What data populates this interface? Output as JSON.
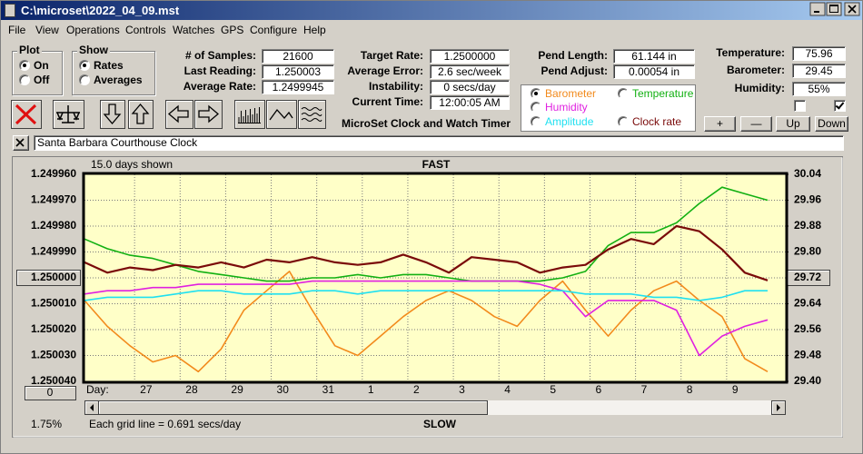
{
  "window": {
    "title": "C:\\microset\\2022_04_09.mst"
  },
  "menu": [
    "File",
    "View",
    "Operations",
    "Controls",
    "Watches",
    "GPS",
    "Configure",
    "Help"
  ],
  "plot": {
    "title": "Plot",
    "options": [
      "On",
      "Off"
    ],
    "selected": 0
  },
  "show": {
    "title": "Show",
    "options": [
      "Rates",
      "Averages"
    ],
    "selected": 0
  },
  "fields": [
    {
      "label": "# of Samples:",
      "value": "21600"
    },
    {
      "label": "Last Reading:",
      "value": "1.250003"
    },
    {
      "label": "Average Rate:",
      "value": "1.2499945"
    },
    {
      "label": "Target Rate:",
      "value": "1.2500000"
    },
    {
      "label": "Average Error:",
      "value": "2.6 sec/week"
    },
    {
      "label": "Instability:",
      "value": "0 secs/day"
    },
    {
      "label": "Current Time:",
      "value": "12:00:05 AM"
    },
    {
      "label": "Pend Length:",
      "value": "61.144 in"
    },
    {
      "label": "Pend Adjust:",
      "value": "0.00054 in"
    },
    {
      "label": "Temperature:",
      "value": "75.96"
    },
    {
      "label": "Barometer:",
      "value": "29.45"
    },
    {
      "label": "Humidity:",
      "value": "55%"
    }
  ],
  "app_title": "MicroSet Clock and Watch Timer",
  "checkboxes": [
    false,
    true
  ],
  "buttons": [
    "+",
    "—",
    "Up",
    "Down"
  ],
  "clock_name": "Santa Barbara Courthouse Clock",
  "chart_data": {
    "type": "line",
    "span_label": "15.0 days shown",
    "top_label": "FAST",
    "bottom_label": "SLOW",
    "x_label": "Day:",
    "grid_note": "Each grid line = 0.691 secs/day",
    "percent": "1.75%",
    "scroll_button": "0",
    "grid": true,
    "legend_selected": 0,
    "x": [
      0,
      0.5,
      1,
      1.5,
      2,
      2.5,
      3,
      3.5,
      4,
      4.5,
      5,
      5.5,
      6,
      6.5,
      7,
      7.5,
      8,
      8.5,
      9,
      9.5,
      10,
      10.5,
      11,
      11.5,
      12,
      12.5,
      13,
      13.5,
      14,
      14.5,
      15
    ],
    "xlim": [
      0,
      15
    ],
    "xticks": [
      {
        "value": 1.1,
        "label": "27"
      },
      {
        "value": 2.1,
        "label": "28"
      },
      {
        "value": 3.1,
        "label": "29"
      },
      {
        "value": 4.1,
        "label": "30"
      },
      {
        "value": 5.1,
        "label": "31"
      },
      {
        "value": 6.1,
        "label": "1"
      },
      {
        "value": 7.1,
        "label": "2"
      },
      {
        "value": 8.1,
        "label": "3"
      },
      {
        "value": 9.1,
        "label": "4"
      },
      {
        "value": 10.1,
        "label": "5"
      },
      {
        "value": 11.1,
        "label": "6"
      },
      {
        "value": 12.1,
        "label": "7"
      },
      {
        "value": 13.1,
        "label": "8"
      },
      {
        "value": 14.1,
        "label": "9"
      }
    ],
    "ylim": [
      1.25004,
      1.24996
    ],
    "yticks": [
      {
        "value": 1.24996,
        "label": "1.249960"
      },
      {
        "value": 1.24997,
        "label": "1.249970"
      },
      {
        "value": 1.24998,
        "label": "1.249980"
      },
      {
        "value": 1.24999,
        "label": "1.249990"
      },
      {
        "value": 1.25,
        "label": "1.250000"
      },
      {
        "value": 1.25001,
        "label": "1.250010"
      },
      {
        "value": 1.25002,
        "label": "1.250020"
      },
      {
        "value": 1.25003,
        "label": "1.250030"
      },
      {
        "value": 1.25004,
        "label": "1.250040"
      }
    ],
    "y2lim": [
      29.4,
      30.04
    ],
    "y2ticks": [
      30.04,
      29.96,
      29.88,
      {
        "value": 29.8,
        "label": "29.80"
      },
      29.72,
      29.64,
      29.56,
      29.48,
      {
        "value": 29.4,
        "label": "29.40"
      }
    ],
    "series": [
      {
        "name": "Barometer",
        "color": "#f28a1c",
        "axis": "y2",
        "values": [
          29.65,
          29.57,
          29.51,
          29.46,
          29.48,
          29.43,
          29.5,
          29.62,
          29.68,
          29.74,
          29.62,
          29.51,
          29.48,
          29.54,
          29.6,
          29.65,
          29.68,
          29.65,
          29.6,
          29.57,
          29.65,
          29.71,
          29.62,
          29.54,
          29.62,
          29.68,
          29.71,
          29.65,
          29.6,
          29.47,
          29.43
        ]
      },
      {
        "name": "Temperature",
        "color": "#12b012",
        "axis": "y2",
        "values": [
          29.84,
          29.81,
          29.79,
          29.78,
          29.76,
          29.74,
          29.73,
          29.72,
          29.71,
          29.71,
          29.72,
          29.72,
          29.73,
          29.72,
          29.73,
          29.73,
          29.72,
          29.71,
          29.71,
          29.71,
          29.71,
          29.72,
          29.74,
          29.82,
          29.86,
          29.86,
          29.89,
          29.95,
          30.0,
          29.98,
          29.96
        ]
      },
      {
        "name": "Humidity",
        "color": "#e020e0",
        "axis": "y2",
        "values": [
          29.67,
          29.68,
          29.68,
          29.69,
          29.69,
          29.7,
          29.7,
          29.7,
          29.7,
          29.7,
          29.71,
          29.71,
          29.71,
          29.71,
          29.71,
          29.71,
          29.71,
          29.71,
          29.71,
          29.71,
          29.7,
          29.68,
          29.6,
          29.65,
          29.65,
          29.65,
          29.62,
          29.48,
          29.54,
          29.57,
          29.59
        ]
      },
      {
        "name": "Amplitude",
        "color": "#20e0f0",
        "axis": "y2",
        "values": [
          29.65,
          29.66,
          29.66,
          29.66,
          29.67,
          29.68,
          29.68,
          29.67,
          29.67,
          29.67,
          29.68,
          29.68,
          29.67,
          29.68,
          29.68,
          29.68,
          29.68,
          29.68,
          29.68,
          29.68,
          29.68,
          29.68,
          29.67,
          29.67,
          29.67,
          29.66,
          29.66,
          29.65,
          29.66,
          29.68,
          29.68
        ]
      },
      {
        "name": "Clock rate",
        "color": "#7a0a0a",
        "values": [
          1.249994,
          1.249998,
          1.249996,
          1.249997,
          1.249995,
          1.249996,
          1.249994,
          1.249996,
          1.249993,
          1.249994,
          1.249992,
          1.249994,
          1.249995,
          1.249994,
          1.249991,
          1.249994,
          1.249998,
          1.249992,
          1.249993,
          1.249994,
          1.249998,
          1.249996,
          1.249995,
          1.249989,
          1.249985,
          1.249987,
          1.24998,
          1.249982,
          1.249989,
          1.249998,
          1.250001
        ]
      }
    ]
  }
}
